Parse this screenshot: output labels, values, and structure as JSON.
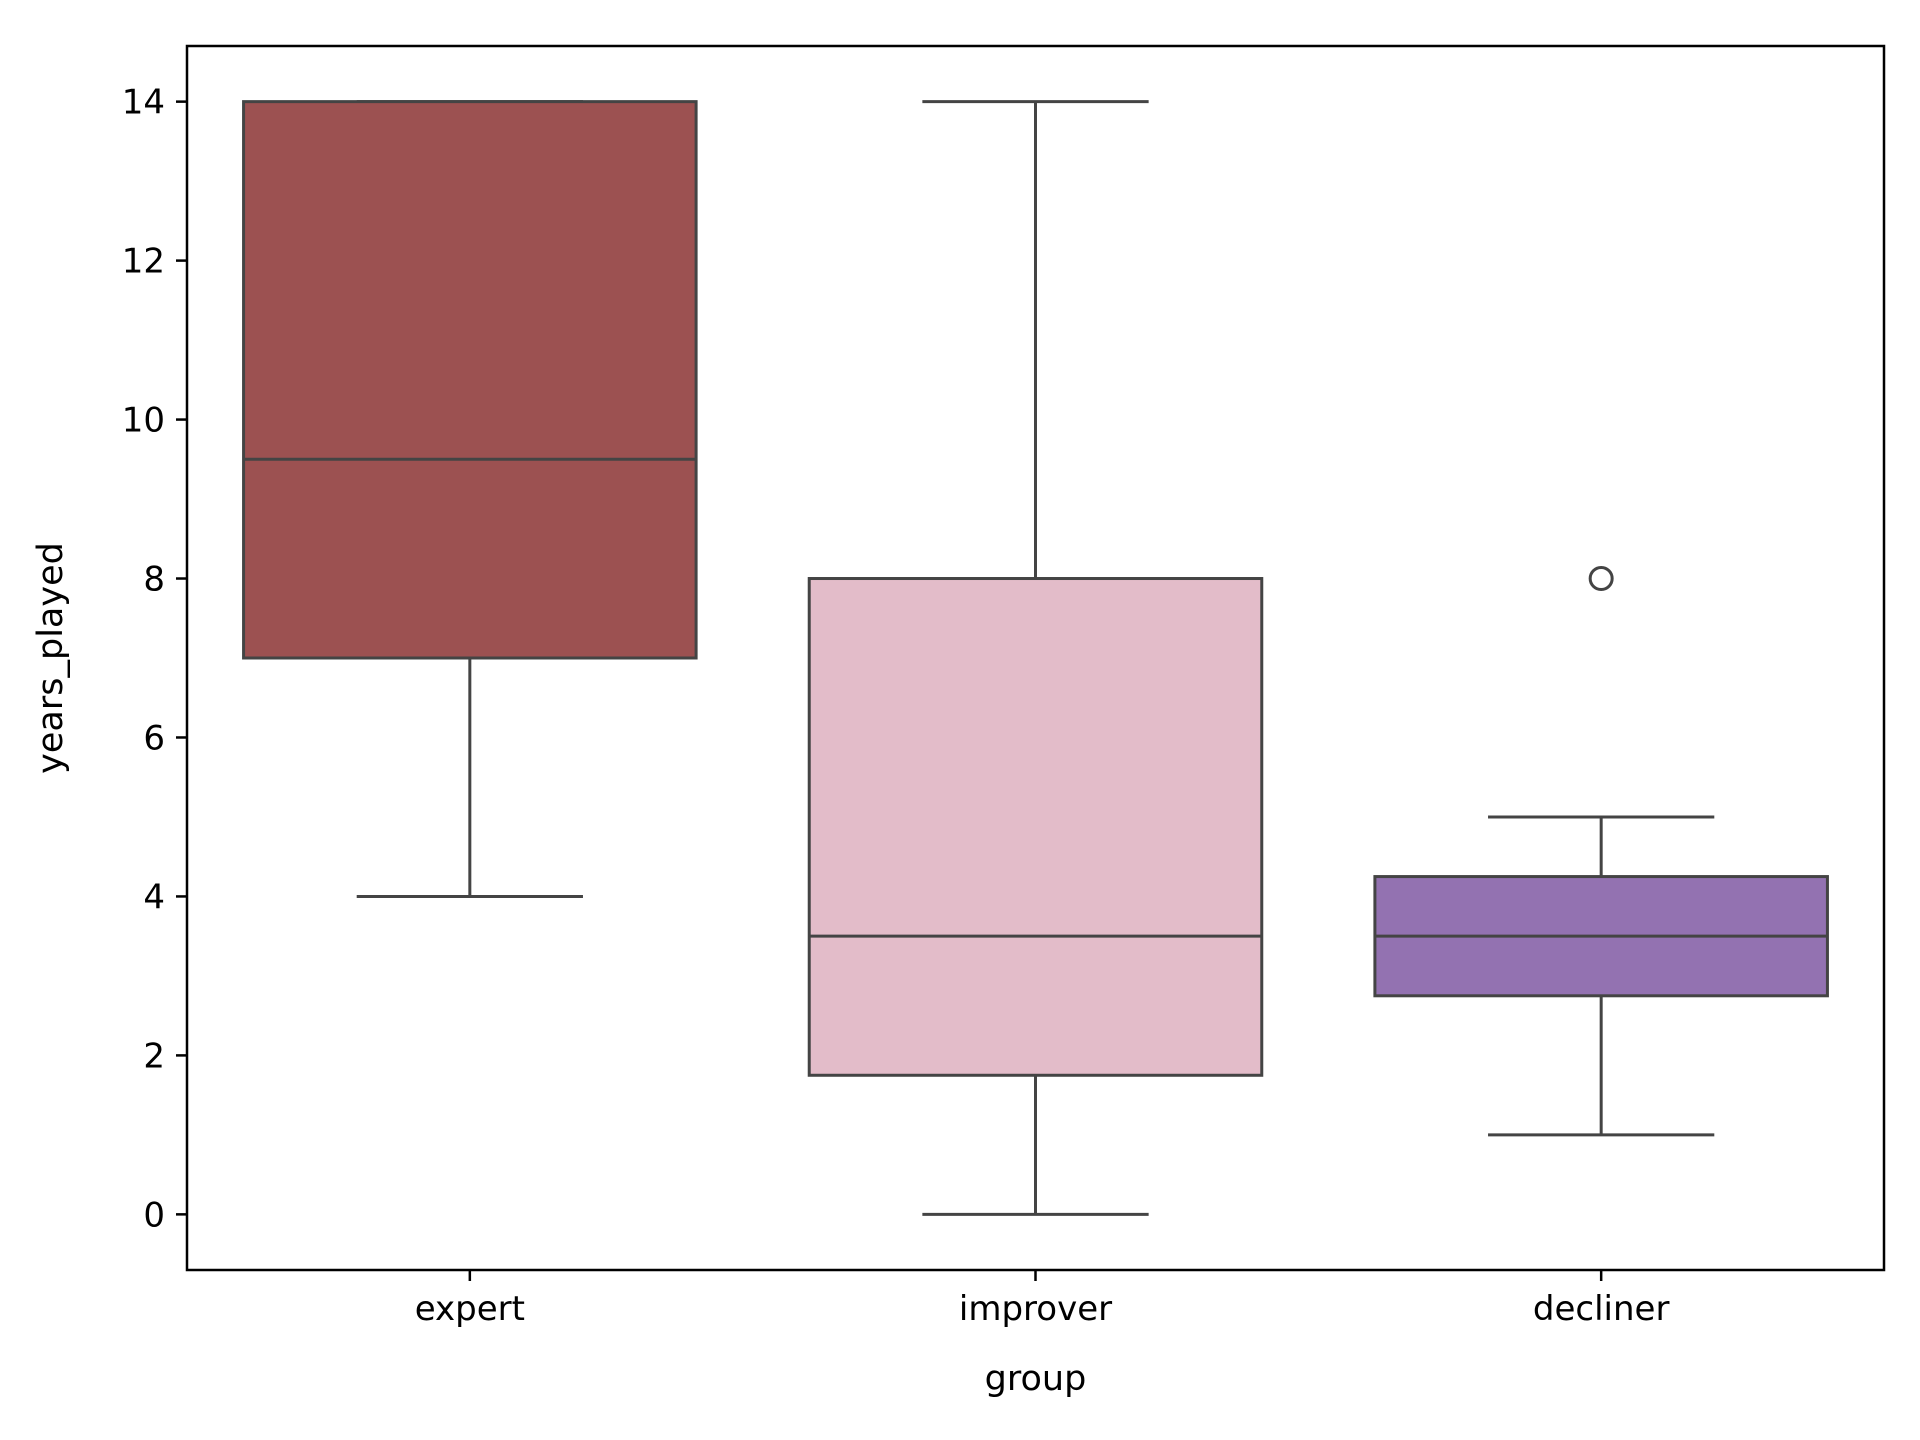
{
  "chart_data": {
    "type": "box",
    "title": "",
    "xlabel": "group",
    "ylabel": "years_played",
    "ylim": [
      -0.7,
      14.7
    ],
    "yticks": [
      0,
      2,
      4,
      6,
      8,
      10,
      12,
      14
    ],
    "ytick_labels": [
      "0",
      "2",
      "4",
      "6",
      "8",
      "10",
      "12",
      "14"
    ],
    "categories": [
      "expert",
      "improver",
      "decliner"
    ],
    "grid": false,
    "legend": "none",
    "boxes": [
      {
        "category": "expert",
        "whisker_low": 4,
        "q1": 7,
        "median": 9.5,
        "q3": 14,
        "whisker_high": 14,
        "outliers": [],
        "color": "#9c5151"
      },
      {
        "category": "improver",
        "whisker_low": 0,
        "q1": 1.75,
        "median": 3.5,
        "q3": 8,
        "whisker_high": 14,
        "outliers": [],
        "color": "#e3bcc9"
      },
      {
        "category": "decliner",
        "whisker_low": 1,
        "q1": 2.75,
        "median": 3.5,
        "q3": 4.25,
        "whisker_high": 5,
        "outliers": [
          8
        ],
        "color": "#9372b1"
      }
    ],
    "line_color": "#444444"
  }
}
